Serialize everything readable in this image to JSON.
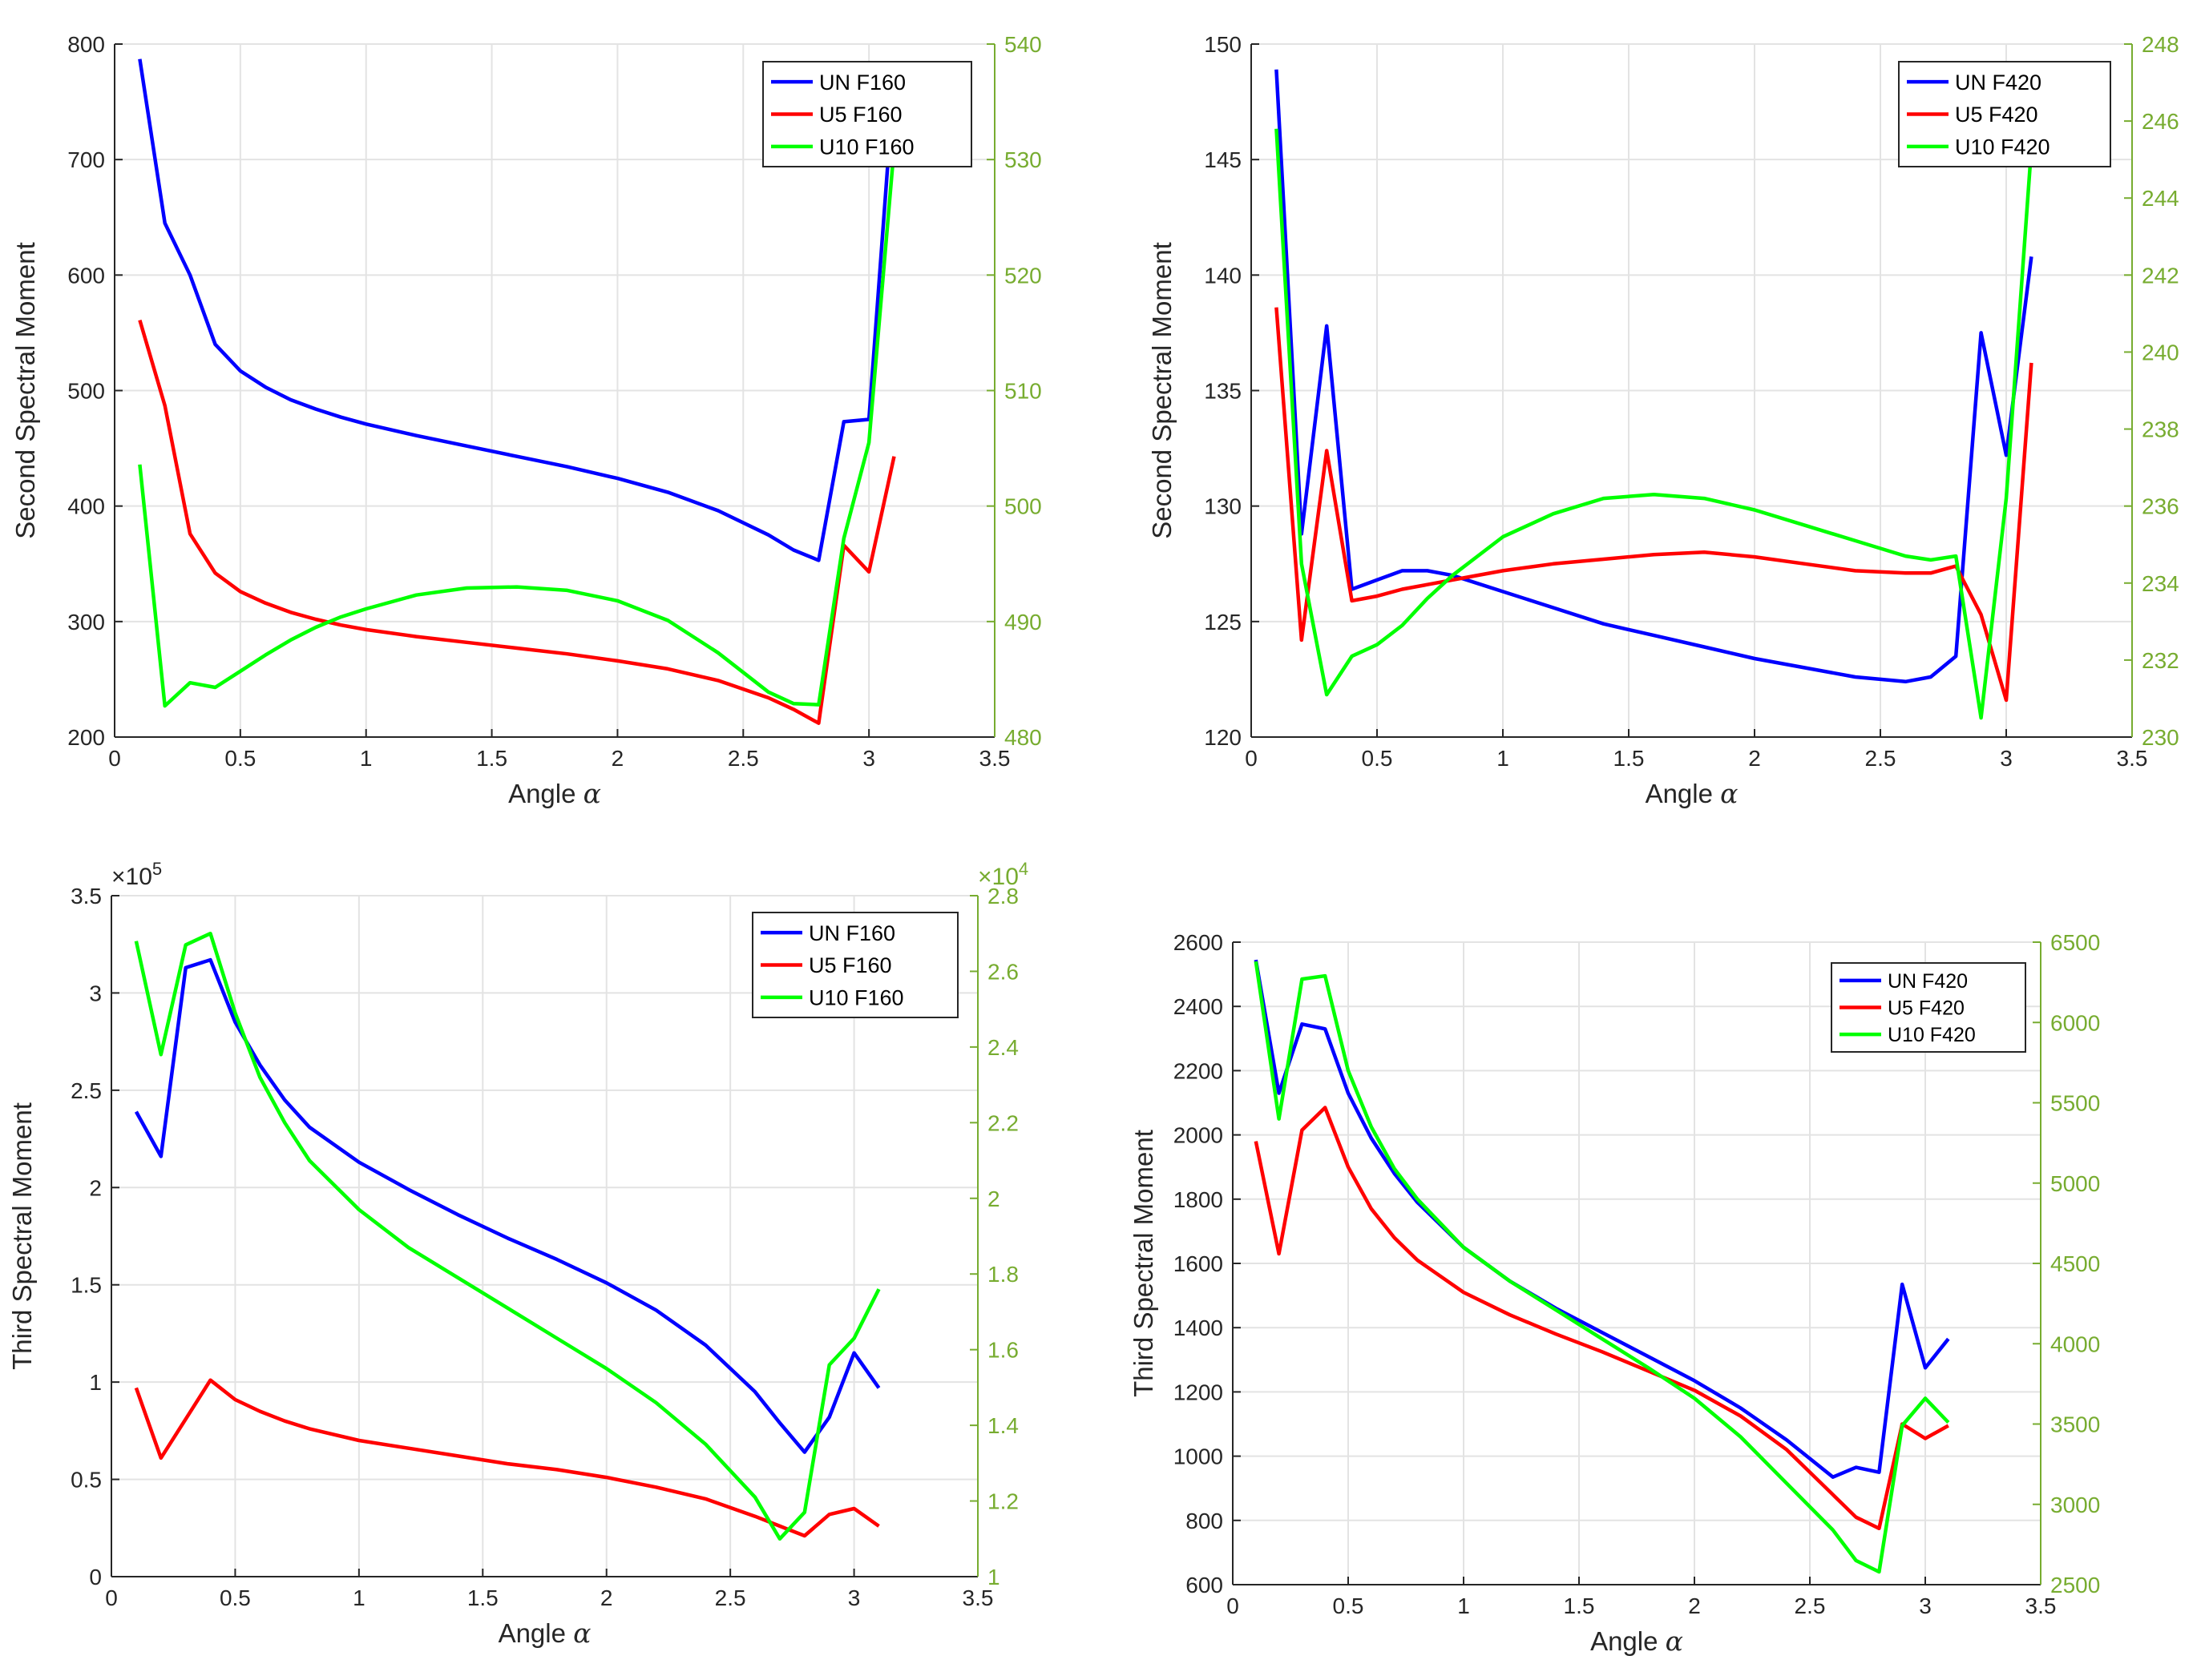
{
  "chart_data": [
    {
      "id": "top-left",
      "type": "line",
      "xlabel": "Angle",
      "xlabel_symbol": "α",
      "ylabel": "Second Spectral Moment",
      "xlim": [
        0,
        3.5
      ],
      "xticks": [
        "0",
        "0.5",
        "1",
        "1.5",
        "2",
        "2.5",
        "3",
        "3.5"
      ],
      "ylim_left": [
        200,
        800
      ],
      "yticks_left": [
        "200",
        "300",
        "400",
        "500",
        "600",
        "700",
        "800"
      ],
      "ylim_right": [
        480,
        540
      ],
      "yticks_right": [
        "480",
        "490",
        "500",
        "510",
        "520",
        "530",
        "540"
      ],
      "grid": true,
      "legend_position": "top-right",
      "series": [
        {
          "name": "UN F160",
          "color": "#0000ff",
          "axis": "left",
          "x": [
            0.1,
            0.2,
            0.3,
            0.4,
            0.5,
            0.6,
            0.7,
            0.8,
            0.9,
            1.0,
            1.2,
            1.4,
            1.6,
            1.8,
            2.0,
            2.2,
            2.4,
            2.6,
            2.7,
            2.8,
            2.9,
            3.0,
            3.1
          ],
          "values": [
            787,
            645,
            600,
            540,
            517,
            503,
            492,
            484,
            477,
            471,
            461,
            452,
            443,
            434,
            424,
            412,
            396,
            375,
            362,
            353,
            473,
            475,
            770
          ]
        },
        {
          "name": "U5 F160",
          "color": "#ff0000",
          "axis": "left",
          "x": [
            0.1,
            0.2,
            0.3,
            0.4,
            0.5,
            0.6,
            0.7,
            0.8,
            0.9,
            1.0,
            1.2,
            1.4,
            1.6,
            1.8,
            2.0,
            2.2,
            2.4,
            2.6,
            2.7,
            2.8,
            2.9,
            3.0,
            3.1
          ],
          "values": [
            561,
            487,
            376,
            342,
            326,
            316,
            308,
            302,
            297,
            293,
            287,
            282,
            277,
            272,
            266,
            259,
            249,
            234,
            224,
            212,
            366,
            343,
            443
          ]
        },
        {
          "name": "U10 F160",
          "color": "#00ff00",
          "axis": "right",
          "x": [
            0.1,
            0.2,
            0.3,
            0.4,
            0.5,
            0.6,
            0.7,
            0.8,
            0.9,
            1.0,
            1.2,
            1.4,
            1.6,
            1.8,
            2.0,
            2.2,
            2.4,
            2.6,
            2.7,
            2.8,
            2.9,
            3.0,
            3.1
          ],
          "values": [
            503.6,
            482.7,
            484.7,
            484.3,
            485.7,
            487.1,
            488.4,
            489.5,
            490.4,
            491.1,
            492.3,
            492.9,
            493.0,
            492.7,
            491.8,
            490.1,
            487.3,
            483.9,
            482.9,
            482.8,
            497.2,
            505.5,
            531.0
          ]
        }
      ]
    },
    {
      "id": "top-right",
      "type": "line",
      "xlabel": "Angle",
      "xlabel_symbol": "α",
      "ylabel": "Second Spectral Moment",
      "xlim": [
        0,
        3.5
      ],
      "xticks": [
        "0",
        "0.5",
        "1",
        "1.5",
        "2",
        "2.5",
        "3",
        "3.5"
      ],
      "ylim_left": [
        120,
        150
      ],
      "yticks_left": [
        "120",
        "125",
        "130",
        "135",
        "140",
        "145",
        "150"
      ],
      "ylim_right": [
        230,
        248
      ],
      "yticks_right": [
        "230",
        "232",
        "234",
        "236",
        "238",
        "240",
        "242",
        "244",
        "246",
        "248"
      ],
      "grid": true,
      "legend_position": "top-right",
      "series": [
        {
          "name": "UN F420",
          "color": "#0000ff",
          "axis": "left",
          "x": [
            0.1,
            0.2,
            0.3,
            0.4,
            0.5,
            0.6,
            0.7,
            0.8,
            1.0,
            1.2,
            1.4,
            1.6,
            1.8,
            2.0,
            2.2,
            2.4,
            2.6,
            2.7,
            2.8,
            2.9,
            3.0,
            3.1
          ],
          "values": [
            148.9,
            128.8,
            137.8,
            126.4,
            126.8,
            127.2,
            127.2,
            127.0,
            126.3,
            125.6,
            124.9,
            124.4,
            123.9,
            123.4,
            123.0,
            122.6,
            122.4,
            122.6,
            123.5,
            137.5,
            132.2,
            140.8
          ]
        },
        {
          "name": "U5 F420",
          "color": "#ff0000",
          "axis": "left",
          "x": [
            0.1,
            0.2,
            0.3,
            0.4,
            0.5,
            0.6,
            0.7,
            0.8,
            1.0,
            1.2,
            1.4,
            1.6,
            1.8,
            2.0,
            2.2,
            2.4,
            2.6,
            2.7,
            2.8,
            2.9,
            3.0,
            3.1
          ],
          "values": [
            138.6,
            124.2,
            132.4,
            125.9,
            126.1,
            126.4,
            126.6,
            126.8,
            127.2,
            127.5,
            127.7,
            127.9,
            128.0,
            127.8,
            127.5,
            127.2,
            127.1,
            127.1,
            127.4,
            125.3,
            121.6,
            136.2
          ]
        },
        {
          "name": "U10 F420",
          "color": "#00ff00",
          "axis": "right",
          "x": [
            0.1,
            0.2,
            0.3,
            0.4,
            0.5,
            0.6,
            0.7,
            0.8,
            1.0,
            1.2,
            1.4,
            1.6,
            1.8,
            2.0,
            2.2,
            2.4,
            2.6,
            2.7,
            2.8,
            2.9,
            3.0,
            3.1
          ],
          "values": [
            245.8,
            234.5,
            231.1,
            232.1,
            232.4,
            232.9,
            233.6,
            234.2,
            235.2,
            235.8,
            236.2,
            236.3,
            236.2,
            235.9,
            235.5,
            235.1,
            234.7,
            234.6,
            234.7,
            230.5,
            236.2,
            245.3
          ]
        }
      ]
    },
    {
      "id": "bottom-left",
      "type": "line",
      "xlabel": "Angle",
      "xlabel_symbol": "α",
      "ylabel": "Third Spectral Moment",
      "xlim": [
        0,
        3.5
      ],
      "xticks": [
        "0",
        "0.5",
        "1",
        "1.5",
        "2",
        "2.5",
        "3",
        "3.5"
      ],
      "ylim_left": [
        0,
        3.5
      ],
      "yticks_left": [
        "0",
        "0.5",
        "1",
        "1.5",
        "2",
        "2.5",
        "3",
        "3.5"
      ],
      "multiplier_left": "×10",
      "multiplier_left_exp": "5",
      "ylim_right": [
        1,
        2.8
      ],
      "yticks_right": [
        "1",
        "1.2",
        "1.4",
        "1.6",
        "1.8",
        "2",
        "2.2",
        "2.4",
        "2.6",
        "2.8"
      ],
      "multiplier_right": "×10",
      "multiplier_right_exp": "4",
      "grid": true,
      "legend_position": "top-right",
      "series": [
        {
          "name": "UN F160",
          "color": "#0000ff",
          "axis": "left",
          "x": [
            0.1,
            0.2,
            0.3,
            0.4,
            0.5,
            0.6,
            0.7,
            0.8,
            1.0,
            1.2,
            1.4,
            1.6,
            1.8,
            2.0,
            2.2,
            2.4,
            2.6,
            2.7,
            2.8,
            2.9,
            3.0,
            3.1
          ],
          "values": [
            2.39,
            2.16,
            3.13,
            3.17,
            2.85,
            2.63,
            2.45,
            2.31,
            2.13,
            1.99,
            1.86,
            1.74,
            1.63,
            1.51,
            1.37,
            1.19,
            0.95,
            0.79,
            0.64,
            0.82,
            1.15,
            0.97
          ]
        },
        {
          "name": "U5 F160",
          "color": "#ff0000",
          "axis": "left",
          "x": [
            0.1,
            0.2,
            0.3,
            0.4,
            0.5,
            0.6,
            0.7,
            0.8,
            1.0,
            1.2,
            1.4,
            1.6,
            1.8,
            2.0,
            2.2,
            2.4,
            2.6,
            2.7,
            2.8,
            2.9,
            3.0,
            3.1
          ],
          "values": [
            0.97,
            0.61,
            0.81,
            1.01,
            0.91,
            0.85,
            0.8,
            0.76,
            0.7,
            0.66,
            0.62,
            0.58,
            0.55,
            0.51,
            0.46,
            0.4,
            0.31,
            0.26,
            0.21,
            0.32,
            0.35,
            0.26
          ]
        },
        {
          "name": "U10 F160",
          "color": "#00ff00",
          "axis": "right",
          "x": [
            0.1,
            0.2,
            0.3,
            0.4,
            0.5,
            0.6,
            0.7,
            0.8,
            1.0,
            1.2,
            1.4,
            1.6,
            1.8,
            2.0,
            2.2,
            2.4,
            2.6,
            2.7,
            2.8,
            2.9,
            3.0,
            3.1
          ],
          "values": [
            2.68,
            2.38,
            2.67,
            2.7,
            2.49,
            2.32,
            2.2,
            2.1,
            1.97,
            1.87,
            1.79,
            1.71,
            1.63,
            1.55,
            1.46,
            1.35,
            1.21,
            1.1,
            1.17,
            1.56,
            1.63,
            1.76
          ]
        }
      ]
    },
    {
      "id": "bottom-right",
      "type": "line",
      "xlabel": "Angle",
      "xlabel_symbol": "α",
      "ylabel": "Third Spectral Moment",
      "xlim": [
        0,
        3.5
      ],
      "xticks": [
        "0",
        "0.5",
        "1",
        "1.5",
        "2",
        "2.5",
        "3",
        "3.5"
      ],
      "ylim_left": [
        600,
        2600
      ],
      "yticks_left": [
        "600",
        "800",
        "1000",
        "1200",
        "1400",
        "1600",
        "1800",
        "2000",
        "2200",
        "2400",
        "2600"
      ],
      "ylim_right": [
        2500,
        6500
      ],
      "yticks_right": [
        "2500",
        "3000",
        "3500",
        "4000",
        "4500",
        "5000",
        "5500",
        "6000",
        "6500"
      ],
      "grid": true,
      "legend_position": "top-right",
      "series": [
        {
          "name": "UN F420",
          "color": "#0000ff",
          "axis": "left",
          "x": [
            0.1,
            0.2,
            0.3,
            0.4,
            0.5,
            0.6,
            0.7,
            0.8,
            1.0,
            1.2,
            1.4,
            1.6,
            1.8,
            2.0,
            2.2,
            2.4,
            2.6,
            2.7,
            2.8,
            2.9,
            3.0,
            3.1
          ],
          "values": [
            2545,
            2130,
            2345,
            2330,
            2130,
            1990,
            1880,
            1790,
            1650,
            1545,
            1460,
            1385,
            1310,
            1235,
            1150,
            1050,
            935,
            965,
            950,
            1535,
            1275,
            1365
          ]
        },
        {
          "name": "U5 F420",
          "color": "#ff0000",
          "axis": "left",
          "x": [
            0.1,
            0.2,
            0.3,
            0.4,
            0.5,
            0.6,
            0.7,
            0.8,
            1.0,
            1.2,
            1.4,
            1.6,
            1.8,
            2.0,
            2.2,
            2.4,
            2.6,
            2.7,
            2.8,
            2.9,
            3.0,
            3.1
          ],
          "values": [
            1980,
            1630,
            2015,
            2085,
            1900,
            1770,
            1680,
            1610,
            1510,
            1440,
            1380,
            1325,
            1265,
            1205,
            1125,
            1020,
            880,
            810,
            775,
            1100,
            1055,
            1095
          ]
        },
        {
          "name": "U10 F420",
          "color": "#00ff00",
          "axis": "right",
          "x": [
            0.1,
            0.2,
            0.3,
            0.4,
            0.5,
            0.6,
            0.7,
            0.8,
            1.0,
            1.2,
            1.4,
            1.6,
            1.8,
            2.0,
            2.2,
            2.4,
            2.6,
            2.7,
            2.8,
            2.9,
            3.0,
            3.1
          ],
          "values": [
            6380,
            5400,
            6270,
            6290,
            5700,
            5350,
            5090,
            4900,
            4600,
            4390,
            4210,
            4030,
            3850,
            3660,
            3420,
            3130,
            2840,
            2650,
            2580,
            3490,
            3660,
            3510
          ]
        }
      ]
    }
  ]
}
